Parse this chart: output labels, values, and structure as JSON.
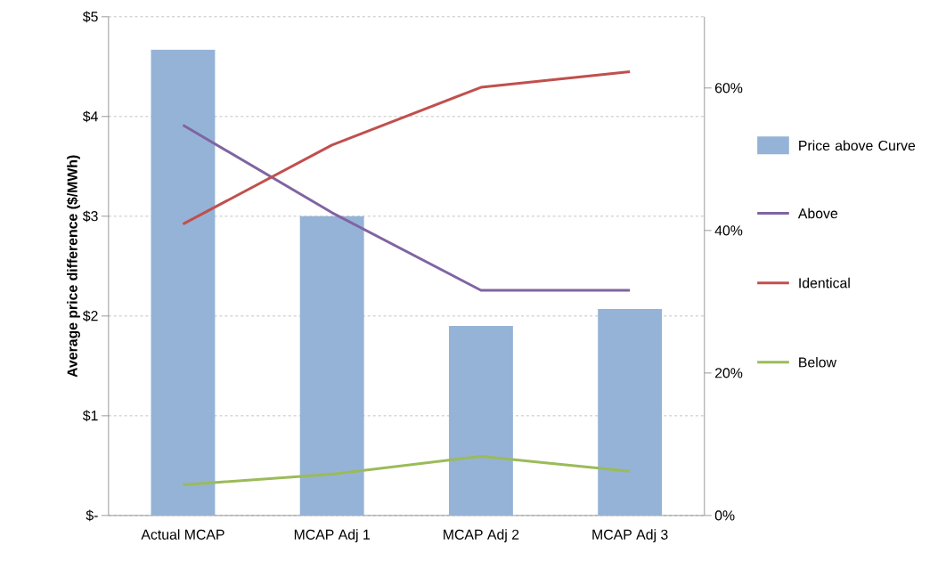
{
  "chart_data": {
    "type": "bar",
    "ylabel": "Average price difference ($/MWh)",
    "categories": [
      "Actual MCAP",
      "MCAP Adj 1",
      "MCAP Adj 2",
      "MCAP Adj 3"
    ],
    "series": [
      {
        "name": "Price above Curve",
        "color": "#95b3d7",
        "values": [
          4.67,
          3.0,
          1.9,
          2.07
        ]
      },
      {
        "name": "Above",
        "type": "line",
        "axis": "y2",
        "color": "#8064a2",
        "values": [
          54.8,
          42.5,
          31.6,
          31.6
        ]
      },
      {
        "name": "Identical",
        "type": "line",
        "axis": "y2",
        "color": "#c0504d",
        "values": [
          40.9,
          52.0,
          60.1,
          62.3
        ]
      },
      {
        "name": "Below",
        "type": "line",
        "axis": "y2",
        "color": "#9bbb59",
        "values": [
          4.3,
          5.8,
          8.3,
          6.2
        ]
      }
    ],
    "ylim": [
      0,
      5
    ],
    "yticks": [
      {
        "value": 0,
        "label": "$-"
      },
      {
        "value": 1,
        "label": "$1"
      },
      {
        "value": 2,
        "label": "$2"
      },
      {
        "value": 3,
        "label": "$3"
      },
      {
        "value": 4,
        "label": "$4"
      },
      {
        "value": 5,
        "label": "$5"
      }
    ],
    "y2lim": [
      0,
      70
    ],
    "y2ticks": [
      {
        "value": 0,
        "label": "0%"
      },
      {
        "value": 20,
        "label": "20%"
      },
      {
        "value": 40,
        "label": "40%"
      },
      {
        "value": 60,
        "label": "60%"
      }
    ],
    "grid": "y",
    "legend": "right"
  }
}
